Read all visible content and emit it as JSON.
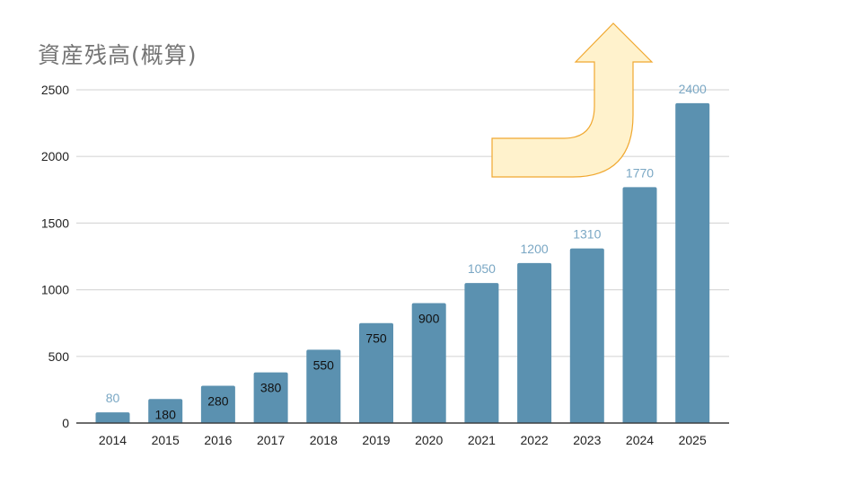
{
  "chart_data": {
    "type": "bar",
    "title": "資産残高(概算)",
    "xlabel": "",
    "ylabel": "",
    "categories": [
      "2014",
      "2015",
      "2016",
      "2017",
      "2018",
      "2019",
      "2020",
      "2021",
      "2022",
      "2023",
      "2024",
      "2025"
    ],
    "values": [
      80,
      180,
      280,
      380,
      550,
      750,
      900,
      1050,
      1200,
      1310,
      1770,
      2400
    ],
    "label_placement": [
      "outside",
      "inside",
      "inside",
      "inside",
      "inside",
      "inside",
      "inside",
      "outside",
      "outside",
      "outside",
      "outside",
      "outside"
    ],
    "ylim": [
      0,
      2500
    ],
    "yticks": [
      0,
      500,
      1000,
      1500,
      2000,
      2500
    ],
    "grid": true,
    "legend": "none",
    "annotations": [
      {
        "type": "arrow",
        "shape": "bent-up",
        "meaning": "upward trend"
      }
    ]
  },
  "colors": {
    "bar": "#5b91b0",
    "label_outside": "#7aa7c4",
    "label_inside": "#111111",
    "grid": "#d9d9d9",
    "title": "#757575",
    "arrow_fill": "#fff2cc",
    "arrow_stroke": "#f0a830"
  }
}
